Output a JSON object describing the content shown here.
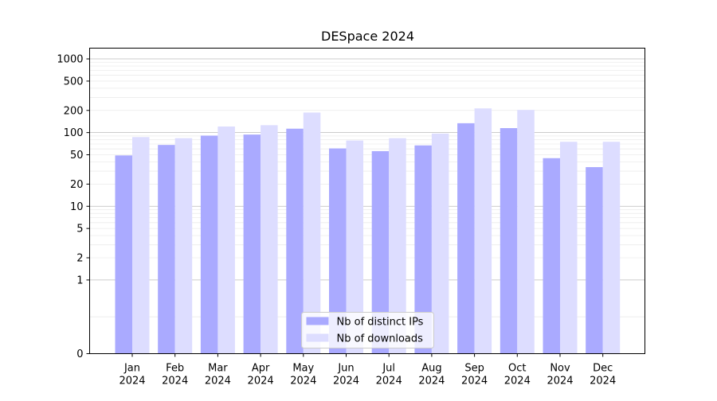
{
  "chart_data": {
    "type": "bar",
    "title": "DESpace 2024",
    "xlabel": "",
    "ylabel": "",
    "yscale": "symlog",
    "ylim": [
      0,
      1400
    ],
    "yticks": [
      0,
      1,
      2,
      5,
      10,
      20,
      50,
      100,
      200,
      500,
      1000
    ],
    "grid": true,
    "legend_placement": "lower center",
    "categories": [
      [
        "Jan",
        "2024"
      ],
      [
        "Feb",
        "2024"
      ],
      [
        "Mar",
        "2024"
      ],
      [
        "Apr",
        "2024"
      ],
      [
        "May",
        "2024"
      ],
      [
        "Jun",
        "2024"
      ],
      [
        "Jul",
        "2024"
      ],
      [
        "Aug",
        "2024"
      ],
      [
        "Sep",
        "2024"
      ],
      [
        "Oct",
        "2024"
      ],
      [
        "Nov",
        "2024"
      ],
      [
        "Dec",
        "2024"
      ]
    ],
    "series": [
      {
        "name": "Nb of distinct IPs",
        "color": "#aaaaff",
        "values": [
          49,
          68,
          91,
          94,
          113,
          61,
          56,
          67,
          134,
          115,
          45,
          34
        ]
      },
      {
        "name": "Nb of downloads",
        "color": "#ddddff",
        "values": [
          87,
          84,
          121,
          126,
          187,
          78,
          84,
          97,
          213,
          203,
          75,
          75
        ]
      }
    ]
  }
}
